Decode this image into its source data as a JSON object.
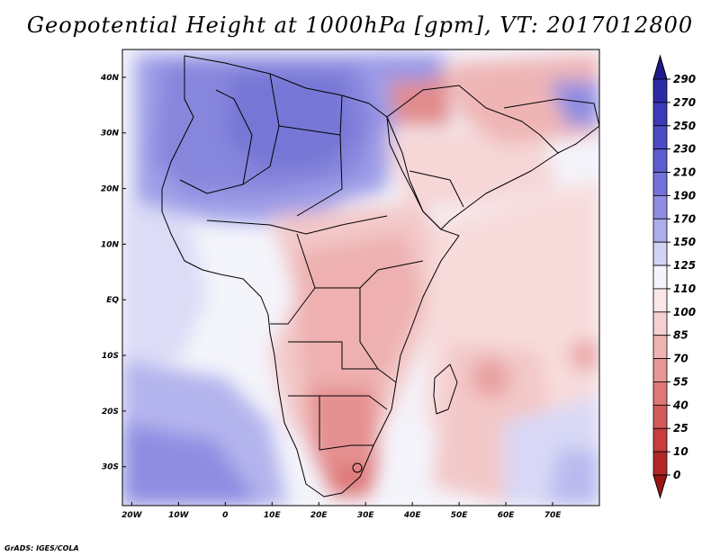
{
  "chart_data": {
    "type": "heatmap",
    "title": "Geopotential Height at 1000hPa [gpm], VT: 2017012800",
    "variable": "Geopotential Height at 1000hPa",
    "units": "gpm",
    "valid_time": "2017012800",
    "lon_range": [
      -22,
      80
    ],
    "lat_range": [
      -37,
      45
    ],
    "x_tick_labels": [
      "20W",
      "10W",
      "0",
      "10E",
      "20E",
      "30E",
      "40E",
      "50E",
      "60E",
      "70E"
    ],
    "x_tick_values": [
      -20,
      -10,
      0,
      10,
      20,
      30,
      40,
      50,
      60,
      70
    ],
    "y_tick_labels": [
      "40N",
      "30N",
      "20N",
      "10N",
      "EQ",
      "10S",
      "20S",
      "30S"
    ],
    "y_tick_values": [
      40,
      30,
      20,
      10,
      0,
      -10,
      -20,
      -30
    ],
    "colorbar_levels": [
      "290",
      "270",
      "250",
      "230",
      "210",
      "190",
      "170",
      "150",
      "125",
      "110",
      "100",
      "85",
      "70",
      "55",
      "40",
      "25",
      "10",
      "0"
    ],
    "colorbar_level_values": [
      290,
      270,
      250,
      230,
      210,
      190,
      170,
      150,
      125,
      110,
      100,
      85,
      70,
      55,
      40,
      25,
      10,
      0
    ],
    "colorbar_colors": [
      "#1e1a8c",
      "#2d2aa6",
      "#3c3ab6",
      "#4b4ac4",
      "#5d5ccf",
      "#7372d8",
      "#8e8de2",
      "#adadec",
      "#d3d3f6",
      "#f4f4fb",
      "#fbe7e7",
      "#f6d0d0",
      "#efb3b3",
      "#e79696",
      "#de7878",
      "#d45a5a",
      "#c63e3e",
      "#b02828",
      "#9a1616"
    ]
  },
  "footer": {
    "credit": "GrADS: IGES/COLA"
  }
}
